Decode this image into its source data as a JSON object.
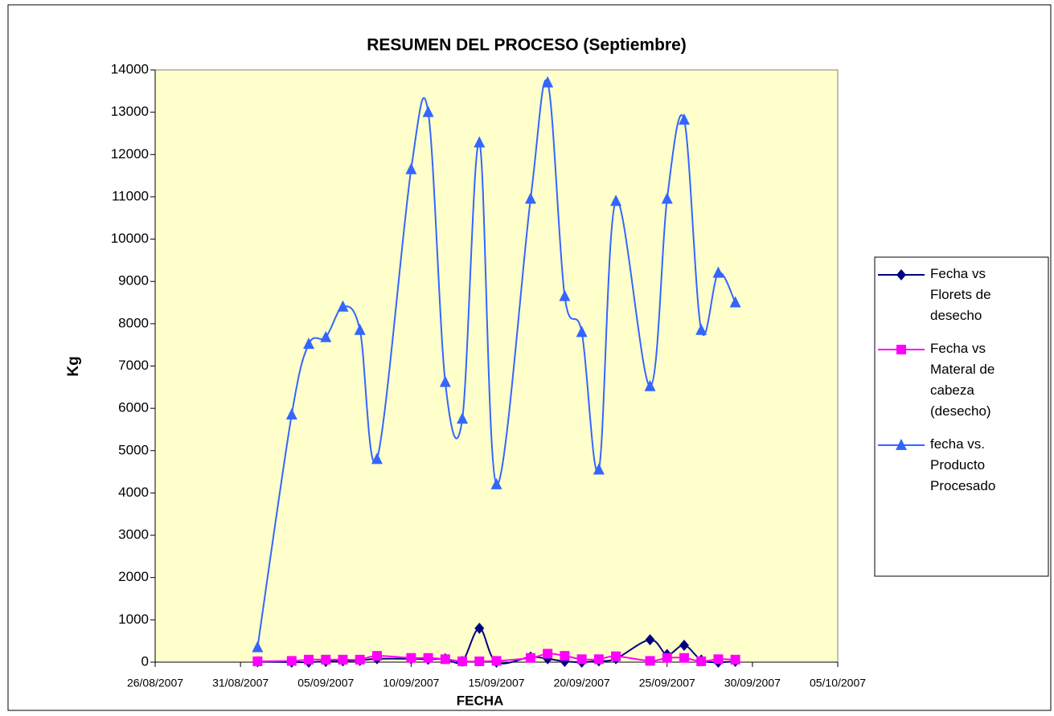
{
  "chart_data": {
    "type": "line",
    "title": "RESUMEN DEL PROCESO (Septiembre)",
    "x_label": "FECHA",
    "y_label": "Kg",
    "x": [
      "2007-09-01",
      "2007-09-03",
      "2007-09-04",
      "2007-09-05",
      "2007-09-06",
      "2007-09-07",
      "2007-09-08",
      "2007-09-10",
      "2007-09-11",
      "2007-09-12",
      "2007-09-13",
      "2007-09-14",
      "2007-09-15",
      "2007-09-17",
      "2007-09-18",
      "2007-09-19",
      "2007-09-20",
      "2007-09-21",
      "2007-09-22",
      "2007-09-24",
      "2007-09-25",
      "2007-09-26",
      "2007-09-27",
      "2007-09-28",
      "2007-09-29"
    ],
    "series": [
      {
        "name": "Fecha vs Florets de desecho",
        "color": "#000080",
        "marker": "diamond",
        "values": [
          10,
          0,
          0,
          20,
          30,
          40,
          80,
          80,
          70,
          80,
          20,
          800,
          0,
          120,
          80,
          20,
          0,
          30,
          80,
          530,
          180,
          400,
          50,
          0,
          20
        ]
      },
      {
        "name": "Fecha vs Materal de cabeza (desecho)",
        "color": "#ff00ff",
        "marker": "square",
        "values": [
          20,
          30,
          60,
          60,
          60,
          60,
          150,
          100,
          100,
          70,
          20,
          20,
          30,
          100,
          200,
          150,
          70,
          70,
          140,
          30,
          100,
          100,
          20,
          70,
          60
        ]
      },
      {
        "name": "fecha vs. Producto Procesado",
        "color": "#3366ff",
        "marker": "triangle",
        "values": [
          350,
          5850,
          7520,
          7680,
          8400,
          7850,
          4800,
          11650,
          13000,
          6620,
          5750,
          12280,
          4200,
          10950,
          13700,
          8650,
          7800,
          4550,
          10900,
          6520,
          10950,
          12820,
          7850,
          9200,
          8500
        ]
      }
    ],
    "xlim": [
      "2007-08-26",
      "2007-10-05"
    ],
    "xticks": [
      {
        "value": "2007-08-26",
        "label": "26/08/2007"
      },
      {
        "value": "2007-08-31",
        "label": "31/08/2007"
      },
      {
        "value": "2007-09-05",
        "label": "05/09/2007"
      },
      {
        "value": "2007-09-10",
        "label": "10/09/2007"
      },
      {
        "value": "2007-09-15",
        "label": "15/09/2007"
      },
      {
        "value": "2007-09-20",
        "label": "20/09/2007"
      },
      {
        "value": "2007-09-25",
        "label": "25/09/2007"
      },
      {
        "value": "2007-09-30",
        "label": "30/09/2007"
      },
      {
        "value": "2007-10-05",
        "label": "05/10/2007"
      }
    ],
    "ylim": [
      0,
      14000
    ],
    "yticks": [
      0,
      1000,
      2000,
      3000,
      4000,
      5000,
      6000,
      7000,
      8000,
      9000,
      10000,
      11000,
      12000,
      13000,
      14000
    ],
    "smooth": true,
    "legend": "right",
    "plot_background": "#ffffcc"
  }
}
